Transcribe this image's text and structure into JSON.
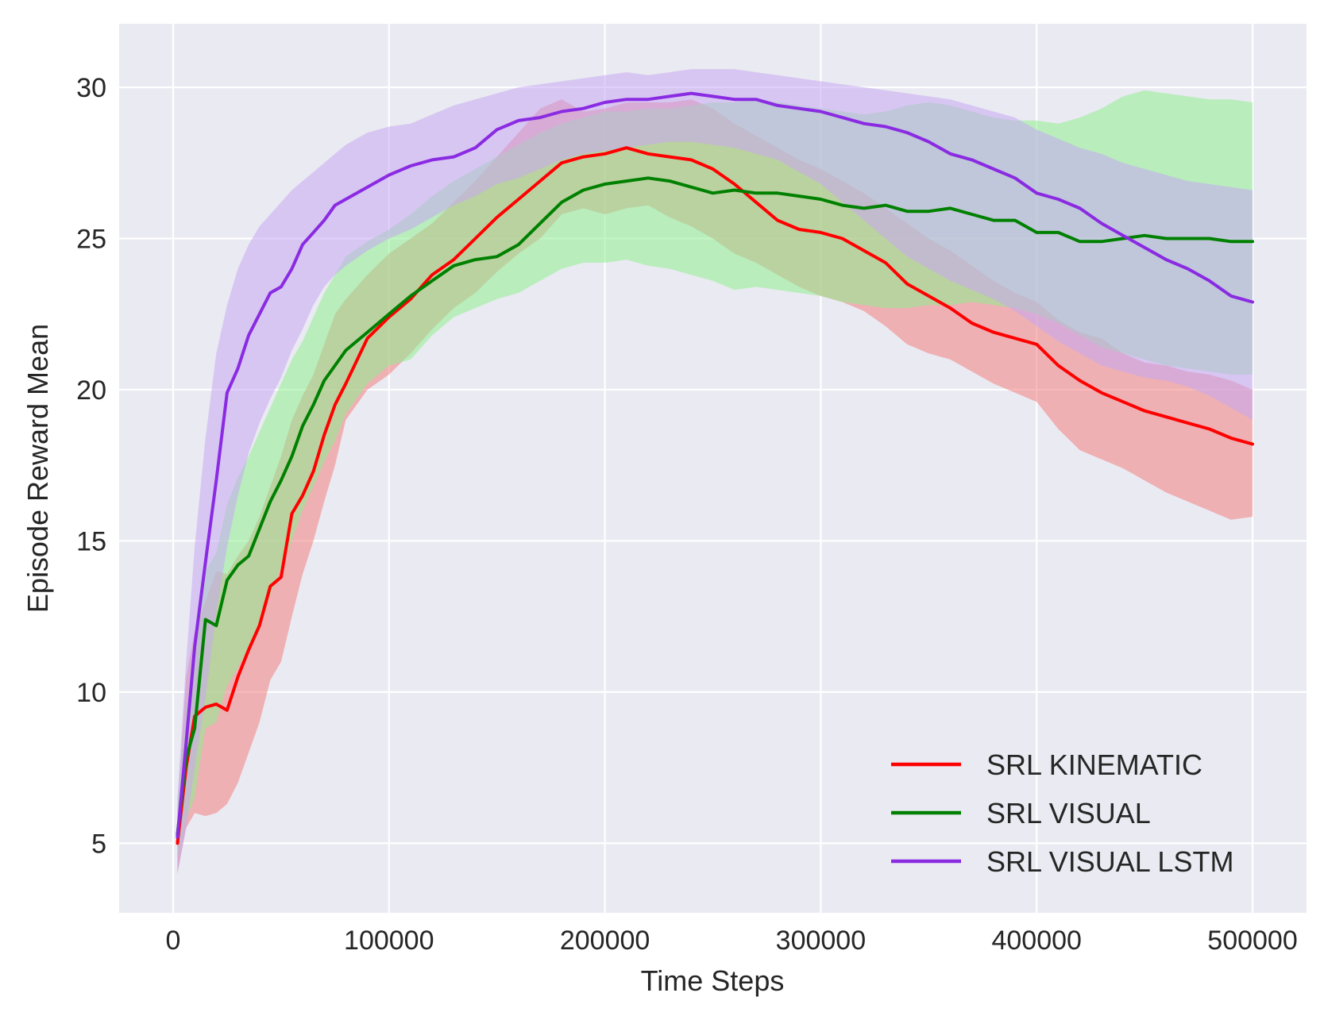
{
  "chart_data": {
    "type": "line",
    "title": "",
    "xlabel": "Time Steps",
    "ylabel": "Episode Reward Mean",
    "xlim": [
      -25000,
      525000
    ],
    "ylim": [
      2.7,
      32.1
    ],
    "xticks": [
      0,
      100000,
      200000,
      300000,
      400000,
      500000
    ],
    "xtick_labels": [
      "0",
      "100000",
      "200000",
      "300000",
      "400000",
      "500000"
    ],
    "yticks": [
      5,
      10,
      15,
      20,
      25,
      30
    ],
    "ytick_labels": [
      "5",
      "10",
      "15",
      "20",
      "25",
      "30"
    ],
    "grid": true,
    "legend_position": "lower-right",
    "series": [
      {
        "name": "SRL KINEMATIC",
        "color": "#ff0000",
        "band_color": "#f08080",
        "x": [
          2000,
          6000,
          10000,
          15000,
          20000,
          25000,
          30000,
          35000,
          40000,
          45000,
          50000,
          55000,
          60000,
          65000,
          70000,
          75000,
          80000,
          90000,
          100000,
          110000,
          120000,
          130000,
          140000,
          150000,
          160000,
          170000,
          180000,
          190000,
          200000,
          210000,
          220000,
          230000,
          240000,
          250000,
          260000,
          270000,
          280000,
          290000,
          300000,
          310000,
          320000,
          330000,
          340000,
          350000,
          360000,
          370000,
          380000,
          390000,
          400000,
          410000,
          420000,
          430000,
          440000,
          450000,
          460000,
          470000,
          480000,
          490000,
          500000
        ],
        "y": [
          5.0,
          7.5,
          9.2,
          9.5,
          9.6,
          9.4,
          10.5,
          11.4,
          12.2,
          13.5,
          13.8,
          15.9,
          16.5,
          17.3,
          18.5,
          19.5,
          20.2,
          21.7,
          22.4,
          23.0,
          23.8,
          24.3,
          25.0,
          25.7,
          26.3,
          26.9,
          27.5,
          27.7,
          27.8,
          28.0,
          27.8,
          27.7,
          27.6,
          27.3,
          26.8,
          26.2,
          25.6,
          25.3,
          25.2,
          25.0,
          24.6,
          24.2,
          23.5,
          23.1,
          22.7,
          22.2,
          21.9,
          21.7,
          21.5,
          20.8,
          20.3,
          19.9,
          19.6,
          19.3,
          19.1,
          18.9,
          18.7,
          18.4,
          18.2
        ],
        "lower": [
          4.0,
          5.5,
          6.0,
          5.9,
          6.0,
          6.3,
          7.0,
          8.0,
          9.0,
          10.4,
          11.0,
          12.5,
          13.9,
          15.0,
          16.3,
          17.5,
          19.0,
          20.0,
          20.5,
          21.2,
          22.0,
          22.7,
          23.2,
          23.9,
          24.5,
          25.0,
          25.8,
          26.0,
          25.8,
          26.0,
          26.1,
          25.7,
          25.4,
          25.0,
          24.5,
          24.2,
          23.8,
          23.4,
          23.1,
          22.9,
          22.6,
          22.1,
          21.5,
          21.2,
          21.0,
          20.6,
          20.2,
          19.9,
          19.6,
          18.7,
          18.0,
          17.7,
          17.4,
          17.0,
          16.6,
          16.3,
          16.0,
          15.7,
          15.8
        ],
        "upper": [
          6.0,
          10.5,
          12.0,
          13.0,
          14.0,
          13.9,
          14.5,
          15.0,
          15.8,
          16.8,
          17.8,
          19.0,
          19.8,
          20.5,
          21.5,
          22.5,
          23.0,
          23.8,
          24.5,
          25.0,
          25.5,
          26.2,
          26.9,
          27.7,
          28.5,
          29.3,
          29.6,
          29.2,
          29.3,
          29.5,
          29.5,
          29.5,
          29.6,
          29.3,
          28.8,
          28.4,
          28.0,
          27.6,
          27.3,
          26.9,
          26.5,
          26.0,
          25.5,
          25.0,
          24.6,
          24.1,
          23.6,
          23.2,
          22.9,
          22.3,
          21.9,
          21.7,
          21.2,
          20.9,
          20.8,
          20.6,
          20.5,
          20.3,
          20.0
        ]
      },
      {
        "name": "SRL VISUAL",
        "color": "#008000",
        "band_color": "#90ee90",
        "x": [
          2000,
          6000,
          10000,
          15000,
          20000,
          25000,
          30000,
          35000,
          40000,
          45000,
          50000,
          55000,
          60000,
          65000,
          70000,
          75000,
          80000,
          90000,
          100000,
          110000,
          120000,
          130000,
          140000,
          150000,
          160000,
          170000,
          180000,
          190000,
          200000,
          210000,
          220000,
          230000,
          240000,
          250000,
          260000,
          270000,
          280000,
          290000,
          300000,
          310000,
          320000,
          330000,
          340000,
          350000,
          360000,
          370000,
          380000,
          390000,
          400000,
          410000,
          420000,
          430000,
          440000,
          450000,
          460000,
          470000,
          480000,
          490000,
          500000
        ],
        "y": [
          5.3,
          7.8,
          8.8,
          12.4,
          12.2,
          13.7,
          14.2,
          14.5,
          15.4,
          16.3,
          17.0,
          17.8,
          18.8,
          19.5,
          20.3,
          20.8,
          21.3,
          21.9,
          22.5,
          23.1,
          23.6,
          24.1,
          24.3,
          24.4,
          24.8,
          25.5,
          26.2,
          26.6,
          26.8,
          26.9,
          27.0,
          26.9,
          26.7,
          26.5,
          26.6,
          26.5,
          26.5,
          26.4,
          26.3,
          26.1,
          26.0,
          26.1,
          25.9,
          25.9,
          26.0,
          25.8,
          25.6,
          25.6,
          25.2,
          25.2,
          24.9,
          24.9,
          25.0,
          25.1,
          25.0,
          25.0,
          25.0,
          24.9,
          24.9
        ],
        "lower": [
          4.5,
          5.8,
          6.5,
          8.8,
          9.0,
          10.2,
          10.8,
          11.5,
          12.3,
          13.2,
          14.1,
          15.0,
          16.0,
          16.8,
          17.6,
          18.3,
          19.2,
          20.2,
          20.8,
          21.0,
          21.8,
          22.4,
          22.7,
          23.0,
          23.2,
          23.6,
          24.0,
          24.2,
          24.2,
          24.3,
          24.1,
          24.0,
          23.8,
          23.6,
          23.3,
          23.4,
          23.3,
          23.2,
          23.1,
          22.9,
          22.8,
          22.7,
          22.7,
          22.8,
          22.8,
          22.9,
          22.8,
          22.7,
          22.5,
          22.2,
          21.8,
          21.4,
          21.2,
          21.0,
          20.8,
          20.7,
          20.6,
          20.5,
          20.5
        ],
        "upper": [
          6.2,
          9.5,
          11.0,
          14.0,
          14.6,
          16.2,
          17.1,
          17.8,
          18.6,
          19.4,
          20.2,
          21.0,
          21.6,
          22.4,
          23.2,
          23.8,
          24.4,
          24.9,
          25.3,
          25.8,
          26.4,
          26.9,
          27.3,
          27.7,
          28.1,
          28.5,
          28.8,
          29.0,
          29.2,
          29.2,
          29.3,
          29.3,
          29.4,
          29.5,
          29.5,
          29.6,
          29.5,
          29.4,
          29.3,
          29.2,
          29.1,
          29.2,
          29.4,
          29.5,
          29.4,
          29.2,
          29.0,
          28.9,
          28.9,
          28.8,
          29.0,
          29.3,
          29.7,
          29.9,
          29.8,
          29.7,
          29.6,
          29.6,
          29.5
        ]
      },
      {
        "name": "SRL VISUAL LSTM",
        "color": "#8a2be2",
        "band_color": "#c7a8f2",
        "x": [
          2000,
          6000,
          10000,
          15000,
          20000,
          25000,
          30000,
          35000,
          40000,
          45000,
          50000,
          55000,
          60000,
          65000,
          70000,
          75000,
          80000,
          90000,
          100000,
          110000,
          120000,
          130000,
          140000,
          150000,
          160000,
          170000,
          180000,
          190000,
          200000,
          210000,
          220000,
          230000,
          240000,
          250000,
          260000,
          270000,
          280000,
          290000,
          300000,
          310000,
          320000,
          330000,
          340000,
          350000,
          360000,
          370000,
          380000,
          390000,
          400000,
          410000,
          420000,
          430000,
          440000,
          450000,
          460000,
          470000,
          480000,
          490000,
          500000
        ],
        "y": [
          5.2,
          8.3,
          11.5,
          14.3,
          17.0,
          19.9,
          20.7,
          21.8,
          22.5,
          23.2,
          23.4,
          24.0,
          24.8,
          25.2,
          25.6,
          26.1,
          26.3,
          26.7,
          27.1,
          27.4,
          27.6,
          27.7,
          28.0,
          28.6,
          28.9,
          29.0,
          29.2,
          29.3,
          29.5,
          29.6,
          29.6,
          29.7,
          29.8,
          29.7,
          29.6,
          29.6,
          29.4,
          29.3,
          29.2,
          29.0,
          28.8,
          28.7,
          28.5,
          28.2,
          27.8,
          27.6,
          27.3,
          27.0,
          26.5,
          26.3,
          26.0,
          25.5,
          25.1,
          24.7,
          24.3,
          24.0,
          23.6,
          23.1,
          22.9
        ],
        "lower": [
          4.0,
          5.5,
          7.5,
          9.8,
          12.6,
          14.8,
          16.5,
          17.9,
          18.9,
          19.7,
          20.4,
          21.3,
          22.0,
          22.8,
          23.4,
          23.8,
          24.1,
          24.6,
          25.0,
          25.3,
          25.7,
          26.1,
          26.4,
          26.8,
          27.0,
          27.3,
          27.6,
          27.8,
          27.9,
          28.0,
          28.1,
          28.2,
          28.2,
          28.1,
          28.0,
          27.8,
          27.6,
          27.2,
          26.8,
          26.2,
          25.6,
          25.0,
          24.4,
          24.0,
          23.6,
          23.3,
          23.0,
          22.6,
          22.1,
          21.6,
          21.2,
          20.8,
          20.6,
          20.4,
          20.3,
          20.1,
          19.8,
          19.4,
          19.0
        ],
        "upper": [
          6.5,
          11.0,
          14.8,
          18.4,
          21.2,
          22.8,
          24.0,
          24.8,
          25.4,
          25.8,
          26.2,
          26.6,
          26.9,
          27.2,
          27.5,
          27.8,
          28.1,
          28.5,
          28.7,
          28.8,
          29.1,
          29.4,
          29.6,
          29.8,
          30.0,
          30.1,
          30.2,
          30.3,
          30.4,
          30.5,
          30.4,
          30.5,
          30.6,
          30.6,
          30.6,
          30.5,
          30.4,
          30.3,
          30.2,
          30.1,
          30.0,
          29.9,
          29.8,
          29.7,
          29.6,
          29.4,
          29.2,
          29.0,
          28.6,
          28.3,
          28.0,
          27.8,
          27.5,
          27.3,
          27.1,
          26.9,
          26.8,
          26.7,
          26.6
        ]
      }
    ]
  }
}
